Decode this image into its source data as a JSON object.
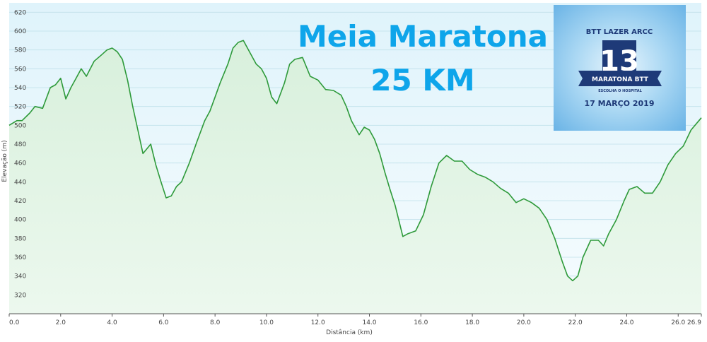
{
  "overlay_title": {
    "line1": "Meia Maratona",
    "line2": "25 KM"
  },
  "badge": {
    "top": "BTT LAZER ARCC",
    "number": "13",
    "ribbon": "MARATONA BTT",
    "sub": "ESCOLHA O HOSPITAL",
    "date": "17 MARÇO 2019"
  },
  "colors": {
    "line": "#2e9a3a",
    "title": "#0ea5ea",
    "badge_bg": "#8cc8ef",
    "badge_dark": "#1e3a78"
  },
  "chart_data": {
    "type": "area",
    "title": "",
    "xlabel": "Distância  (km)",
    "ylabel": "Elevação (m)",
    "xlim": [
      0,
      26.9
    ],
    "ylim": [
      300,
      630
    ],
    "x_ticks": [
      0,
      2,
      4,
      6,
      8,
      10,
      12,
      14,
      16,
      18,
      20,
      22,
      24,
      26
    ],
    "x_tick_labels": [
      "0.0",
      "2.0",
      "4.0",
      "6.0",
      "8.0",
      "10.0",
      "12.0",
      "14.0",
      "16.0",
      "18.0",
      "20.0",
      "22.0",
      "24.0",
      "26.0"
    ],
    "x_end_label": "26.9",
    "y_ticks": [
      320,
      340,
      360,
      380,
      400,
      420,
      440,
      460,
      480,
      500,
      520,
      540,
      560,
      580,
      600,
      620
    ],
    "grid": true,
    "series": [
      {
        "x": [
          0,
          0.3,
          0.5,
          0.8,
          1.0,
          1.3,
          1.6,
          1.8,
          2.0,
          2.2,
          2.4,
          2.6,
          2.8,
          3.0,
          3.3,
          3.6,
          3.8,
          4.0,
          4.2,
          4.4,
          4.6,
          4.8,
          5.0,
          5.2,
          5.5,
          5.7,
          5.9,
          6.1,
          6.3,
          6.5,
          6.7,
          7.0,
          7.3,
          7.6,
          7.8,
          8.0,
          8.2,
          8.5,
          8.7,
          8.9,
          9.1,
          9.3,
          9.6,
          9.8,
          10.0,
          10.2,
          10.4,
          10.7,
          10.9,
          11.1,
          11.4,
          11.7,
          12.0,
          12.3,
          12.6,
          12.9,
          13.1,
          13.3,
          13.6,
          13.8,
          14.0,
          14.2,
          14.4,
          14.6,
          14.8,
          15.0,
          15.3,
          15.5,
          15.8,
          16.1,
          16.4,
          16.7,
          17.0,
          17.3,
          17.6,
          17.9,
          18.2,
          18.5,
          18.8,
          19.1,
          19.4,
          19.7,
          20.0,
          20.3,
          20.6,
          20.9,
          21.2,
          21.5,
          21.7,
          21.9,
          22.1,
          22.3,
          22.6,
          22.9,
          23.1,
          23.3,
          23.6,
          23.9,
          24.1,
          24.4,
          24.7,
          25.0,
          25.3,
          25.6,
          25.9,
          26.2,
          26.5,
          26.9
        ],
        "y": [
          500,
          505,
          505,
          513,
          520,
          518,
          540,
          543,
          550,
          528,
          540,
          550,
          560,
          552,
          568,
          575,
          580,
          582,
          578,
          570,
          548,
          520,
          495,
          470,
          480,
          458,
          440,
          423,
          425,
          435,
          440,
          460,
          483,
          505,
          515,
          530,
          545,
          565,
          582,
          588,
          590,
          580,
          565,
          560,
          550,
          530,
          523,
          545,
          565,
          570,
          572,
          552,
          548,
          538,
          537,
          532,
          520,
          505,
          490,
          498,
          495,
          485,
          470,
          450,
          432,
          415,
          382,
          385,
          388,
          405,
          435,
          460,
          468,
          462,
          462,
          453,
          448,
          445,
          440,
          433,
          428,
          418,
          422,
          418,
          412,
          400,
          380,
          355,
          340,
          335,
          340,
          360,
          378,
          378,
          372,
          385,
          400,
          420,
          432,
          435,
          428,
          428,
          440,
          458,
          470,
          478,
          495,
          508
        ]
      }
    ]
  }
}
